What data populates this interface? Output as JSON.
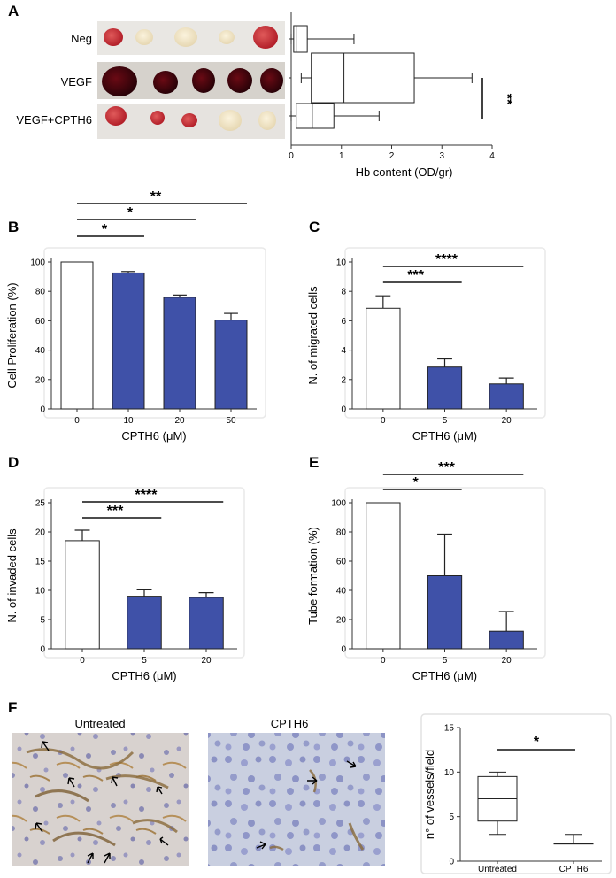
{
  "colors": {
    "bar_treated": "#3f51a8",
    "bar_control": "#ffffff",
    "frame": "#e9e9e9"
  },
  "panels": {
    "A": {
      "letter": "A"
    },
    "B": {
      "letter": "B"
    },
    "C": {
      "letter": "C"
    },
    "D": {
      "letter": "D"
    },
    "E": {
      "letter": "E"
    },
    "F": {
      "letter": "F",
      "photo_left_label": "Untreated",
      "photo_right_label": "CPTH6"
    }
  },
  "chart_data": [
    {
      "id": "A",
      "type": "box",
      "orientation": "horizontal",
      "categories": [
        "Neg",
        "VEGF",
        "VEGF+CPTH6"
      ],
      "boxes": [
        {
          "min": 0.0,
          "q1": 0.05,
          "median": 0.1,
          "q3": 0.32,
          "max": 1.25
        },
        {
          "min": 0.2,
          "q1": 0.4,
          "median": 1.05,
          "q3": 2.45,
          "max": 3.6
        },
        {
          "min": 0.0,
          "q1": 0.1,
          "median": 0.42,
          "q3": 0.85,
          "max": 1.75
        }
      ],
      "xlabel": "Hb content (OD/gr)",
      "xlim": [
        0,
        4
      ],
      "xticks": [
        0,
        1,
        2,
        3,
        4
      ],
      "significance": [
        {
          "between": [
            "VEGF",
            "VEGF+CPTH6"
          ],
          "label": "**"
        }
      ]
    },
    {
      "id": "B",
      "type": "bar",
      "categories": [
        "0",
        "10",
        "20",
        "50"
      ],
      "values": [
        100,
        92.5,
        76,
        60.5
      ],
      "errors": [
        0,
        1,
        1.5,
        4.5
      ],
      "xlabel": "CPTH6 (μM)",
      "ylabel": "Cell Proliferation (%)",
      "ylim": [
        0,
        100
      ],
      "yticks": [
        0,
        20,
        40,
        60,
        80,
        100
      ],
      "significance": [
        {
          "from": "0",
          "to": "10",
          "label": "*"
        },
        {
          "from": "0",
          "to": "20",
          "label": "*"
        },
        {
          "from": "0",
          "to": "50",
          "label": "**"
        }
      ]
    },
    {
      "id": "C",
      "type": "bar",
      "categories": [
        "0",
        "5",
        "20"
      ],
      "values": [
        6.85,
        2.85,
        1.7
      ],
      "errors": [
        0.85,
        0.55,
        0.4
      ],
      "xlabel": "CPTH6 (μM)",
      "ylabel": "N. of migrated cells",
      "ylim": [
        0,
        10
      ],
      "yticks": [
        0,
        2,
        4,
        6,
        8,
        10
      ],
      "significance": [
        {
          "from": "0",
          "to": "5",
          "label": "***"
        },
        {
          "from": "0",
          "to": "20",
          "label": "****"
        }
      ]
    },
    {
      "id": "D",
      "type": "bar",
      "categories": [
        "0",
        "5",
        "20"
      ],
      "values": [
        18.5,
        9,
        8.8
      ],
      "errors": [
        1.8,
        1.1,
        0.8
      ],
      "xlabel": "CPTH6 (μM)",
      "ylabel": "N. of invaded cells",
      "ylim": [
        0,
        25
      ],
      "yticks": [
        0,
        5,
        10,
        15,
        20,
        25
      ],
      "significance": [
        {
          "from": "0",
          "to": "5",
          "label": "***"
        },
        {
          "from": "0",
          "to": "20",
          "label": "****"
        }
      ]
    },
    {
      "id": "E",
      "type": "bar",
      "categories": [
        "0",
        "5",
        "20"
      ],
      "values": [
        100,
        50,
        12
      ],
      "errors": [
        0,
        28.5,
        13.5
      ],
      "xlabel": "CPTH6 (μM)",
      "ylabel": "Tube formation (%)",
      "ylim": [
        0,
        100
      ],
      "yticks": [
        0,
        20,
        40,
        60,
        80,
        100
      ],
      "significance": [
        {
          "from": "0",
          "to": "5",
          "label": "*"
        },
        {
          "from": "0",
          "to": "20",
          "label": "***"
        }
      ]
    },
    {
      "id": "F",
      "type": "box",
      "orientation": "vertical",
      "categories": [
        "Untreated",
        "CPTH6"
      ],
      "boxes": [
        {
          "min": 3,
          "q1": 4.5,
          "median": 7,
          "q3": 9.5,
          "max": 10
        },
        {
          "min": 2,
          "q1": 2,
          "median": 2,
          "q3": 2,
          "max": 3
        }
      ],
      "ylabel": "n° of vessels/field",
      "ylim": [
        0,
        15
      ],
      "yticks": [
        0,
        5,
        10,
        15
      ],
      "significance": [
        {
          "from": "Untreated",
          "to": "CPTH6",
          "label": "*"
        }
      ]
    }
  ]
}
